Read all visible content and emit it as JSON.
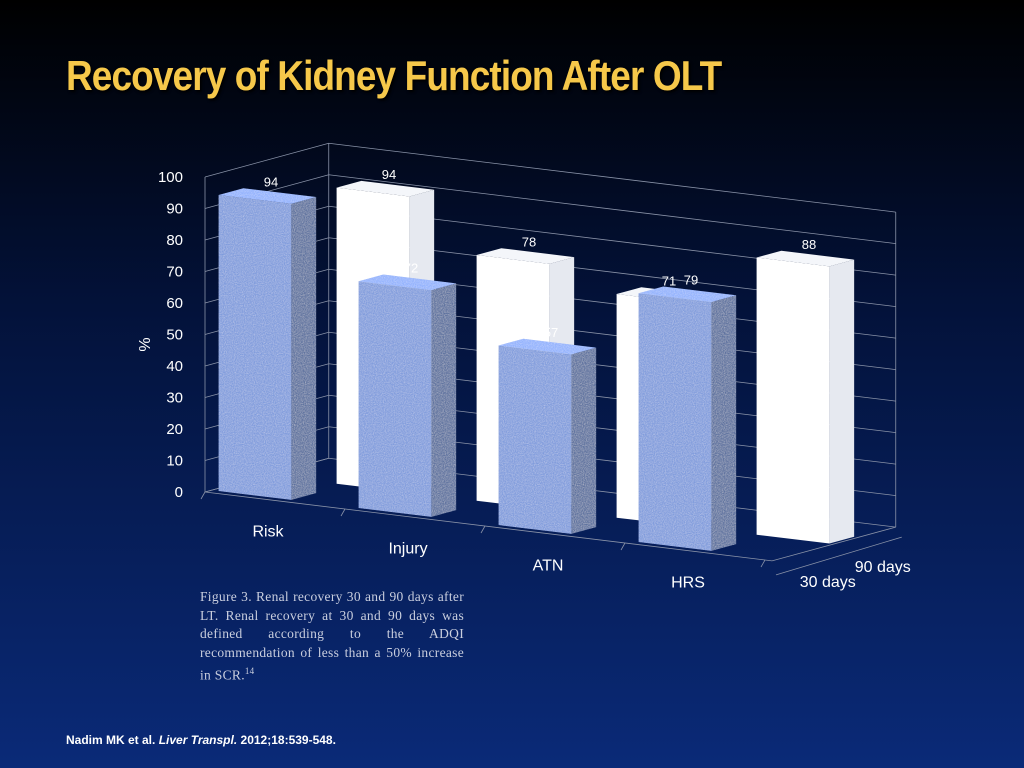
{
  "slide": {
    "title": "Recovery of Kidney Function After OLT",
    "caption": {
      "text": "Figure 3.  Renal recovery 30 and 90 days after LT. Renal recovery at 30 and 90 days was defined according to the ADQI recommendation of less than a 50% increase in SCR.",
      "ref": "14"
    },
    "citation": {
      "authors": "Nadim MK et al.",
      "journal": "Liver Transpl.",
      "details": "2012;18:539-548."
    }
  },
  "chart_data": {
    "type": "bar",
    "title": "",
    "ylabel": "%",
    "xlabel": "",
    "ylim": [
      0,
      100
    ],
    "yticks": [
      0,
      10,
      20,
      30,
      40,
      50,
      60,
      70,
      80,
      90,
      100
    ],
    "grid": true,
    "categories": [
      "Risk",
      "Injury",
      "ATN",
      "HRS"
    ],
    "series": [
      {
        "name": "30 days",
        "values": [
          94,
          72,
          57,
          79
        ],
        "color": "#7f9bdc"
      },
      {
        "name": "90 days",
        "values": [
          94,
          78,
          71,
          88
        ],
        "color": "#ffffff"
      }
    ],
    "data_labels": true
  }
}
